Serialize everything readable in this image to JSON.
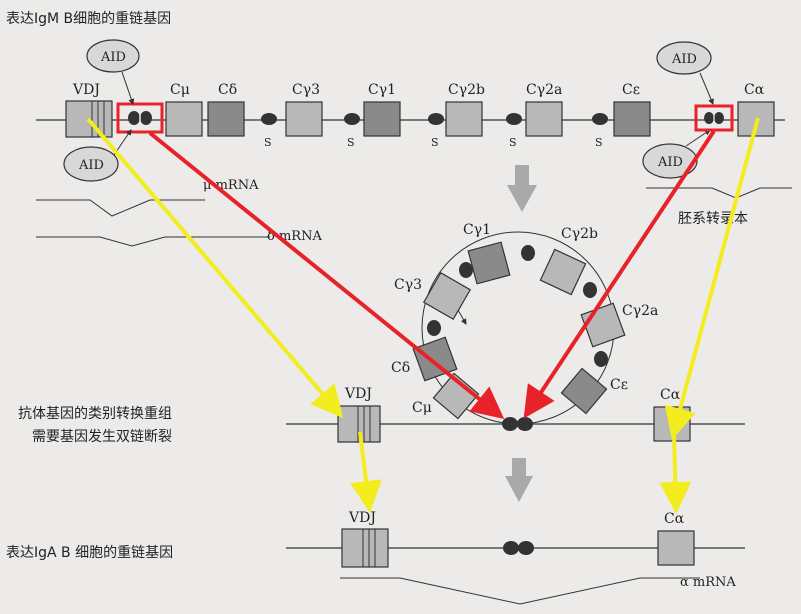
{
  "title_igm": "表达IgM B细胞的重链基因",
  "title_class_switch_1": "抗体基因的类别转换重组",
  "title_class_switch_2": "需要基因发生双链断裂",
  "title_iga": "表达IgA B 细胞的重链基因",
  "aid_label": "AID",
  "switch_label": "S",
  "vdj_label": "VDJ",
  "germline_transcript": "胚系转录本",
  "segments": {
    "c_mu": "Cμ",
    "c_delta": "Cδ",
    "c_gamma3": "Cγ3",
    "c_gamma1": "Cγ1",
    "c_gamma2b": "Cγ2b",
    "c_gamma2a": "Cγ2a",
    "c_epsilon": "Cε",
    "c_alpha": "Cα"
  },
  "transcripts": {
    "mu_mrna": "μ mRNA",
    "delta_mrna": "δ mRNA",
    "alpha_mrna": "α mRNA"
  },
  "colors": {
    "box_light": "#b8b8b8",
    "box_dark": "#8a8a8a",
    "red_arrow": "#e8222a",
    "yellow_arrow": "#f3ec1e",
    "gray_arrow": "#a9a9a9"
  }
}
